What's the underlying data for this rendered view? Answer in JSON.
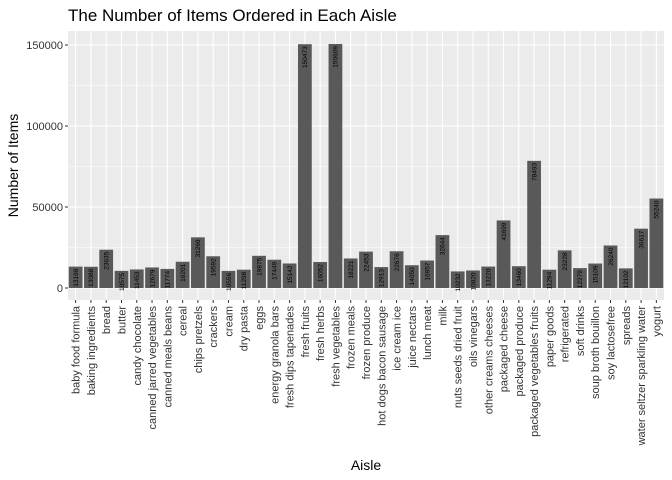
{
  "chart_data": {
    "type": "bar",
    "title": "The Number of Items Ordered in Each Aisle",
    "xlabel": "Aisle",
    "ylabel": "Number of Items",
    "ylim": [
      0,
      160000
    ],
    "yticks": [
      0,
      50000,
      100000,
      150000
    ],
    "ytick_labels": [
      "0",
      "50000",
      "100000",
      "150000"
    ],
    "grid": true,
    "colors": {
      "bar": "#595959",
      "panel": "#ebebeb",
      "grid": "#ffffff"
    },
    "categories": [
      "baby food formula",
      "baking ingredients",
      "bread",
      "butter",
      "candy chocolate",
      "canned jarred vegetables",
      "canned meals beans",
      "cereal",
      "chips pretzels",
      "crackers",
      "cream",
      "dry pasta",
      "eggs",
      "energy granola bars",
      "fresh dips tapenades",
      "fresh fruits",
      "fresh herbs",
      "fresh vegetables",
      "frozen meals",
      "frozen produce",
      "hot dogs bacon sausage",
      "ice cream ice",
      "juice nectars",
      "lunch meat",
      "milk",
      "nuts seeds dried fruit",
      "oils vinegars",
      "other creams cheeses",
      "packaged cheese",
      "packaged produce",
      "packaged vegetables fruits",
      "paper goods",
      "refrigerated",
      "soft drinks",
      "soup broth bouillon",
      "soy lactosefree",
      "spreads",
      "water seltzer sparkling water",
      "yogurt"
    ],
    "values": [
      13198,
      13088,
      23635,
      10575,
      11453,
      12679,
      11774,
      16201,
      31269,
      19592,
      10556,
      11298,
      19875,
      17449,
      15142,
      150473,
      16052,
      150609,
      18221,
      22453,
      12913,
      22676,
      14050,
      16957,
      32644,
      10232,
      10820,
      13220,
      41699,
      13460,
      78493,
      11294,
      23228,
      12279,
      15109,
      26240,
      12102,
      36617,
      55240
    ],
    "data_labels": [
      "13198",
      "13088",
      "23635",
      "10575",
      "11453",
      "12679",
      "11774",
      "16201",
      "31269",
      "19592",
      "10556",
      "11298",
      "19875",
      "17449",
      "15142",
      "150473",
      "16052",
      "150609",
      "18221",
      "22453",
      "12913",
      "22676",
      "14050",
      "16957",
      "32644",
      "10232",
      "10820",
      "13220",
      "41699",
      "13460",
      "78493",
      "11294",
      "23228",
      "12279",
      "15109",
      "26240",
      "12102",
      "36617",
      "55240"
    ]
  }
}
